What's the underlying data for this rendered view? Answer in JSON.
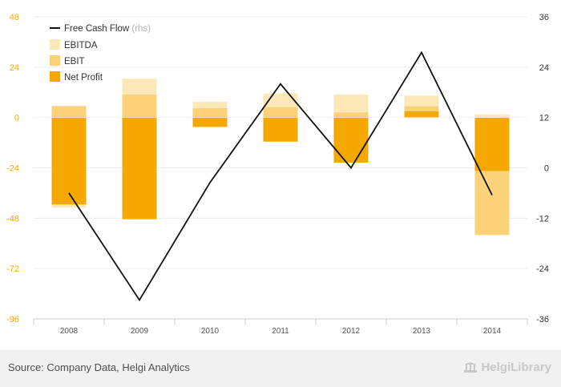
{
  "chart_data": {
    "type": "bar",
    "categories": [
      "2008",
      "2009",
      "2010",
      "2011",
      "2012",
      "2013",
      "2014"
    ],
    "series": [
      {
        "name": "EBITDA",
        "kind": "bar",
        "axis": "left",
        "color": "#fde9b8",
        "values": [
          -1.5,
          7.5,
          3,
          6.5,
          8.5,
          5,
          1.5
        ]
      },
      {
        "name": "EBIT",
        "kind": "bar",
        "axis": "left",
        "color": "#fbd27a",
        "values": [
          5.5,
          11,
          4.5,
          5,
          2.5,
          2.5,
          -30.5
        ]
      },
      {
        "name": "Net Profit",
        "kind": "bar",
        "axis": "left",
        "color": "#f5a800",
        "values": [
          -41.5,
          -48.5,
          -4.5,
          -11.5,
          -21.5,
          3,
          -25.5
        ]
      },
      {
        "name": "Free Cash Flow",
        "kind": "line",
        "axis": "right",
        "color": "#111111",
        "rhs_label": "(rhs)",
        "values": [
          -6,
          -31.5,
          -3.5,
          20,
          0,
          27.5,
          -6.5
        ]
      }
    ],
    "yleft": {
      "ticks": [
        48,
        24,
        0,
        -24,
        -48,
        -72,
        -96
      ],
      "range": [
        -96,
        48
      ],
      "color": "#f5a800"
    },
    "yright": {
      "ticks": [
        36,
        24,
        12,
        0,
        -12,
        -24,
        -36
      ],
      "range": [
        -36,
        36
      ],
      "color": "#333333"
    },
    "grid": true,
    "legend": "top-left"
  },
  "footer": {
    "source": "Source: Company Data, Helgi Analytics",
    "brand": "HelgiLibrary"
  }
}
